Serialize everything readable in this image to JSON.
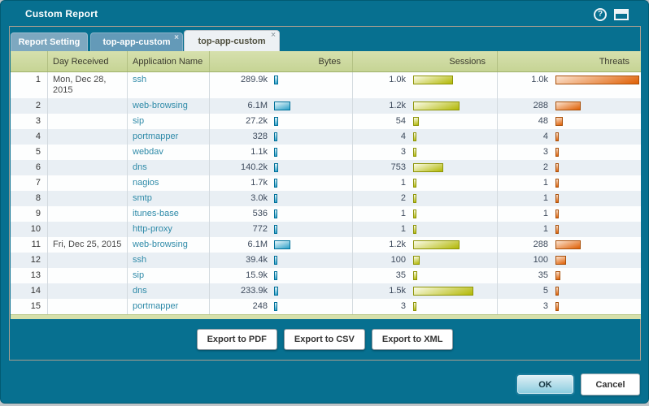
{
  "dialog": {
    "title": "Custom Report"
  },
  "tabs": [
    {
      "label": "Report Setting",
      "closable": false,
      "active": false
    },
    {
      "label": "top-app-custom",
      "closable": true,
      "active": false
    },
    {
      "label": "top-app-custom",
      "closable": true,
      "active": true
    }
  ],
  "table": {
    "columns": [
      "",
      "Day Received",
      "Application Name",
      "Bytes",
      "Sessions",
      "Threats"
    ],
    "rows": [
      {
        "num": 1,
        "day": "Mon, Dec 28,\n2015",
        "app": "ssh",
        "bytes": "289.9k",
        "bytes_bar": 5,
        "sessions": "1.0k",
        "sessions_bar": 49,
        "threats": "1.0k",
        "threats_bar": 103
      },
      {
        "num": 2,
        "day": "",
        "app": "web-browsing",
        "bytes": "6.1M",
        "bytes_bar": 20,
        "sessions": "1.2k",
        "sessions_bar": 57,
        "threats": "288",
        "threats_bar": 31
      },
      {
        "num": 3,
        "day": "",
        "app": "sip",
        "bytes": "27.2k",
        "bytes_bar": 5,
        "sessions": "54",
        "sessions_bar": 7,
        "threats": "48",
        "threats_bar": 9
      },
      {
        "num": 4,
        "day": "",
        "app": "portmapper",
        "bytes": "328",
        "bytes_bar": 4,
        "sessions": "4",
        "sessions_bar": 4,
        "threats": "4",
        "threats_bar": 4
      },
      {
        "num": 5,
        "day": "",
        "app": "webdav",
        "bytes": "1.1k",
        "bytes_bar": 4,
        "sessions": "3",
        "sessions_bar": 4,
        "threats": "3",
        "threats_bar": 4
      },
      {
        "num": 6,
        "day": "",
        "app": "dns",
        "bytes": "140.2k",
        "bytes_bar": 5,
        "sessions": "753",
        "sessions_bar": 37,
        "threats": "2",
        "threats_bar": 4
      },
      {
        "num": 7,
        "day": "",
        "app": "nagios",
        "bytes": "1.7k",
        "bytes_bar": 4,
        "sessions": "1",
        "sessions_bar": 4,
        "threats": "1",
        "threats_bar": 4
      },
      {
        "num": 8,
        "day": "",
        "app": "smtp",
        "bytes": "3.0k",
        "bytes_bar": 4,
        "sessions": "2",
        "sessions_bar": 4,
        "threats": "1",
        "threats_bar": 4
      },
      {
        "num": 9,
        "day": "",
        "app": "itunes-base",
        "bytes": "536",
        "bytes_bar": 4,
        "sessions": "1",
        "sessions_bar": 4,
        "threats": "1",
        "threats_bar": 4
      },
      {
        "num": 10,
        "day": "",
        "app": "http-proxy",
        "bytes": "772",
        "bytes_bar": 4,
        "sessions": "1",
        "sessions_bar": 4,
        "threats": "1",
        "threats_bar": 4
      },
      {
        "num": 11,
        "day": "Fri, Dec 25, 2015",
        "app": "web-browsing",
        "bytes": "6.1M",
        "bytes_bar": 20,
        "sessions": "1.2k",
        "sessions_bar": 57,
        "threats": "288",
        "threats_bar": 31
      },
      {
        "num": 12,
        "day": "",
        "app": "ssh",
        "bytes": "39.4k",
        "bytes_bar": 4,
        "sessions": "100",
        "sessions_bar": 8,
        "threats": "100",
        "threats_bar": 13
      },
      {
        "num": 13,
        "day": "",
        "app": "sip",
        "bytes": "15.9k",
        "bytes_bar": 4,
        "sessions": "35",
        "sessions_bar": 5,
        "threats": "35",
        "threats_bar": 6
      },
      {
        "num": 14,
        "day": "",
        "app": "dns",
        "bytes": "233.9k",
        "bytes_bar": 5,
        "sessions": "1.5k",
        "sessions_bar": 74,
        "threats": "5",
        "threats_bar": 4
      },
      {
        "num": 15,
        "day": "",
        "app": "portmapper",
        "bytes": "248",
        "bytes_bar": 4,
        "sessions": "3",
        "sessions_bar": 4,
        "threats": "3",
        "threats_bar": 4
      }
    ]
  },
  "export_buttons": [
    "Export to PDF",
    "Export to CSV",
    "Export to XML"
  ],
  "footer": {
    "ok": "OK",
    "cancel": "Cancel"
  },
  "icons": {
    "help": "?",
    "tab_close": "×"
  },
  "colors": {
    "dialog_teal": "#077090",
    "header_green": "#cdd9a1",
    "bytes_bar": "#2da0c8",
    "sessions_bar": "#b2b806",
    "threats_bar": "#df5f04",
    "link": "#2e8aa8"
  }
}
